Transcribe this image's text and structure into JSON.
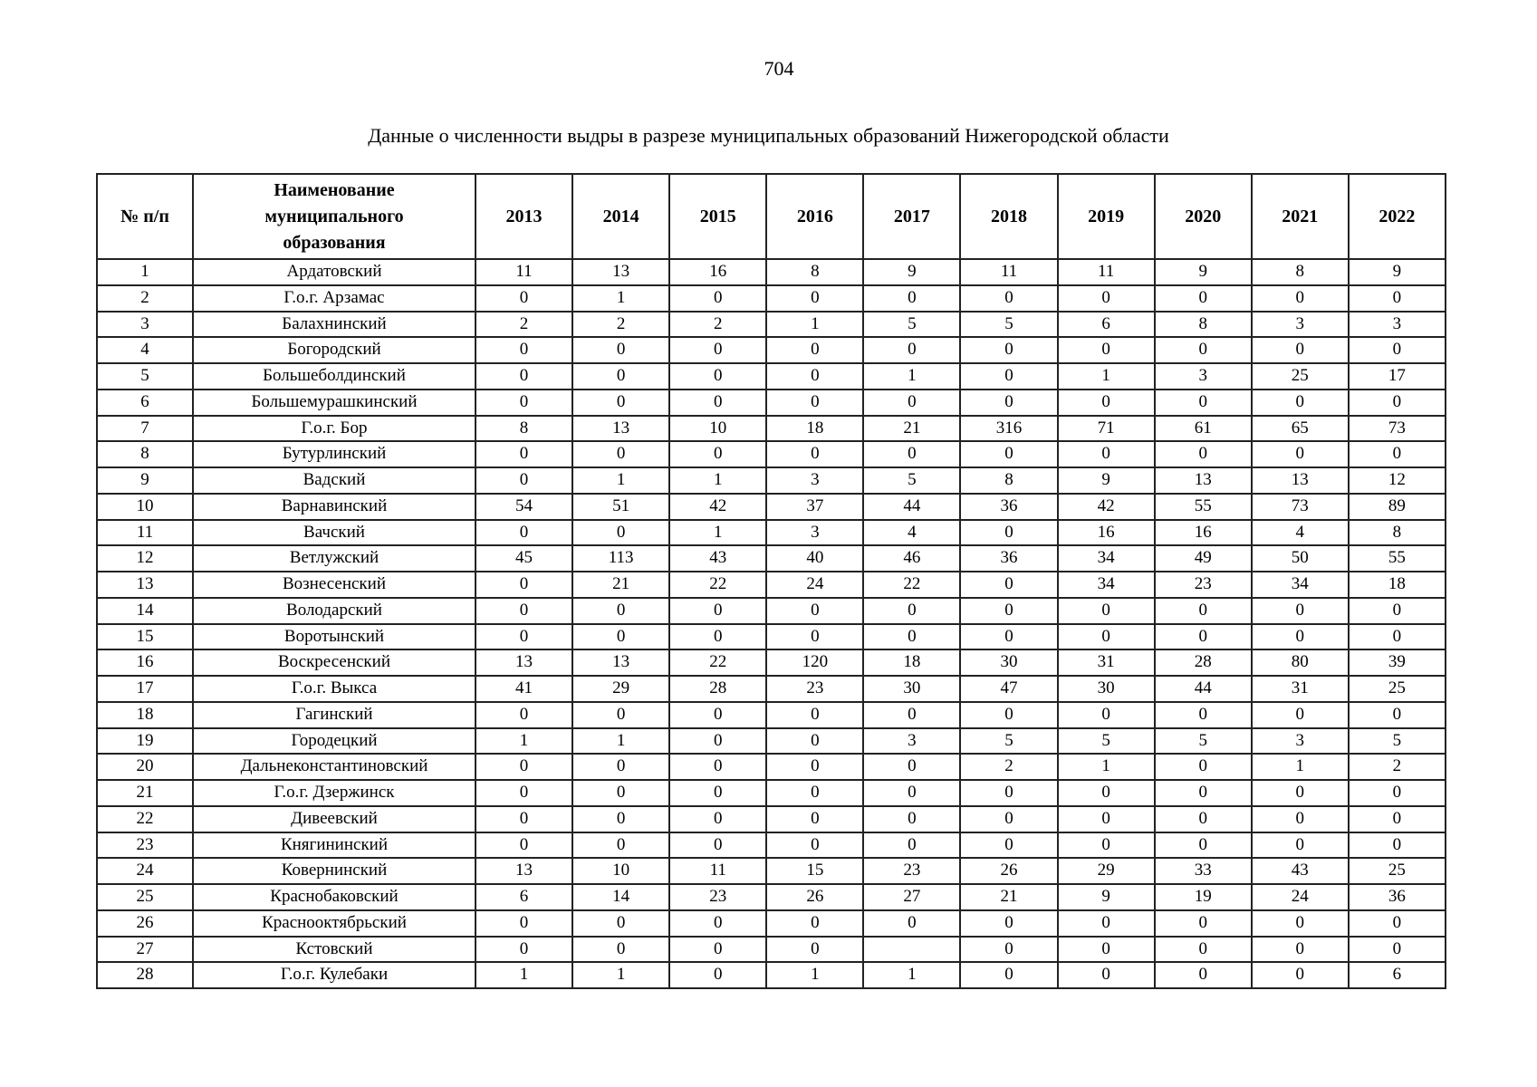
{
  "page": {
    "number": "704"
  },
  "table": {
    "title": "Данные о численности выдры в разрезе муниципальных образований Нижегородской области",
    "columns": [
      "№ п/п",
      "Наименование\nмуниципального\nобразования",
      "2013",
      "2014",
      "2015",
      "2016",
      "2017",
      "2018",
      "2019",
      "2020",
      "2021",
      "2022"
    ],
    "rows": [
      {
        "num": "1",
        "name": "Ардатовский",
        "values": [
          "11",
          "13",
          "16",
          "8",
          "9",
          "11",
          "11",
          "9",
          "8",
          "9"
        ]
      },
      {
        "num": "2",
        "name": "Г.о.г. Арзамас",
        "values": [
          "0",
          "1",
          "0",
          "0",
          "0",
          "0",
          "0",
          "0",
          "0",
          "0"
        ]
      },
      {
        "num": "3",
        "name": "Балахнинский",
        "values": [
          "2",
          "2",
          "2",
          "1",
          "5",
          "5",
          "6",
          "8",
          "3",
          "3"
        ]
      },
      {
        "num": "4",
        "name": "Богородский",
        "values": [
          "0",
          "0",
          "0",
          "0",
          "0",
          "0",
          "0",
          "0",
          "0",
          "0"
        ]
      },
      {
        "num": "5",
        "name": "Большеболдинский",
        "values": [
          "0",
          "0",
          "0",
          "0",
          "1",
          "0",
          "1",
          "3",
          "25",
          "17"
        ]
      },
      {
        "num": "6",
        "name": "Большемурашкинский",
        "values": [
          "0",
          "0",
          "0",
          "0",
          "0",
          "0",
          "0",
          "0",
          "0",
          "0"
        ]
      },
      {
        "num": "7",
        "name": "Г.о.г. Бор",
        "values": [
          "8",
          "13",
          "10",
          "18",
          "21",
          "316",
          "71",
          "61",
          "65",
          "73"
        ]
      },
      {
        "num": "8",
        "name": "Бутурлинский",
        "values": [
          "0",
          "0",
          "0",
          "0",
          "0",
          "0",
          "0",
          "0",
          "0",
          "0"
        ]
      },
      {
        "num": "9",
        "name": "Вадский",
        "values": [
          "0",
          "1",
          "1",
          "3",
          "5",
          "8",
          "9",
          "13",
          "13",
          "12"
        ]
      },
      {
        "num": "10",
        "name": "Варнавинский",
        "values": [
          "54",
          "51",
          "42",
          "37",
          "44",
          "36",
          "42",
          "55",
          "73",
          "89"
        ]
      },
      {
        "num": "11",
        "name": "Вачский",
        "values": [
          "0",
          "0",
          "1",
          "3",
          "4",
          "0",
          "16",
          "16",
          "4",
          "8"
        ]
      },
      {
        "num": "12",
        "name": "Ветлужский",
        "values": [
          "45",
          "113",
          "43",
          "40",
          "46",
          "36",
          "34",
          "49",
          "50",
          "55"
        ]
      },
      {
        "num": "13",
        "name": "Вознесенский",
        "values": [
          "0",
          "21",
          "22",
          "24",
          "22",
          "0",
          "34",
          "23",
          "34",
          "18"
        ]
      },
      {
        "num": "14",
        "name": "Володарский",
        "values": [
          "0",
          "0",
          "0",
          "0",
          "0",
          "0",
          "0",
          "0",
          "0",
          "0"
        ]
      },
      {
        "num": "15",
        "name": "Воротынский",
        "values": [
          "0",
          "0",
          "0",
          "0",
          "0",
          "0",
          "0",
          "0",
          "0",
          "0"
        ]
      },
      {
        "num": "16",
        "name": "Воскресенский",
        "values": [
          "13",
          "13",
          "22",
          "120",
          "18",
          "30",
          "31",
          "28",
          "80",
          "39"
        ]
      },
      {
        "num": "17",
        "name": "Г.о.г. Выкса",
        "values": [
          "41",
          "29",
          "28",
          "23",
          "30",
          "47",
          "30",
          "44",
          "31",
          "25"
        ]
      },
      {
        "num": "18",
        "name": "Гагинский",
        "values": [
          "0",
          "0",
          "0",
          "0",
          "0",
          "0",
          "0",
          "0",
          "0",
          "0"
        ]
      },
      {
        "num": "19",
        "name": "Городецкий",
        "values": [
          "1",
          "1",
          "0",
          "0",
          "3",
          "5",
          "5",
          "5",
          "3",
          "5"
        ]
      },
      {
        "num": "20",
        "name": "Дальнеконстантиновский",
        "values": [
          "0",
          "0",
          "0",
          "0",
          "0",
          "2",
          "1",
          "0",
          "1",
          "2"
        ]
      },
      {
        "num": "21",
        "name": "Г.о.г. Дзержинск",
        "values": [
          "0",
          "0",
          "0",
          "0",
          "0",
          "0",
          "0",
          "0",
          "0",
          "0"
        ]
      },
      {
        "num": "22",
        "name": "Дивеевский",
        "values": [
          "0",
          "0",
          "0",
          "0",
          "0",
          "0",
          "0",
          "0",
          "0",
          "0"
        ]
      },
      {
        "num": "23",
        "name": "Княгининский",
        "values": [
          "0",
          "0",
          "0",
          "0",
          "0",
          "0",
          "0",
          "0",
          "0",
          "0"
        ]
      },
      {
        "num": "24",
        "name": "Ковернинский",
        "values": [
          "13",
          "10",
          "11",
          "15",
          "23",
          "26",
          "29",
          "33",
          "43",
          "25"
        ]
      },
      {
        "num": "25",
        "name": "Краснобаковский",
        "values": [
          "6",
          "14",
          "23",
          "26",
          "27",
          "21",
          "9",
          "19",
          "24",
          "36"
        ]
      },
      {
        "num": "26",
        "name": "Краснооктябрьский",
        "values": [
          "0",
          "0",
          "0",
          "0",
          "0",
          "0",
          "0",
          "0",
          "0",
          "0"
        ]
      },
      {
        "num": "27",
        "name": "Кстовский",
        "values": [
          "0",
          "0",
          "0",
          "0",
          "",
          "0",
          "0",
          "0",
          "0",
          "0"
        ]
      },
      {
        "num": "28",
        "name": "Г.о.г. Кулебаки",
        "values": [
          "1",
          "1",
          "0",
          "1",
          "1",
          "0",
          "0",
          "0",
          "0",
          "6"
        ]
      }
    ]
  }
}
